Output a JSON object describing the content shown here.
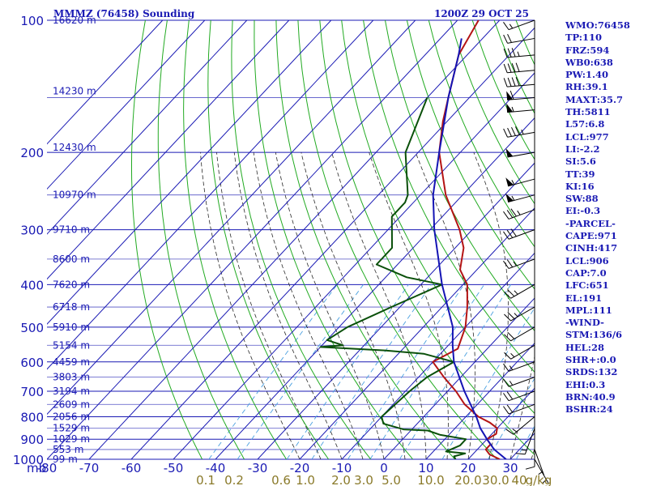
{
  "header": {
    "title_left": "MMMZ (76458) Sounding",
    "title_right": "1200Z 29 OCT 25"
  },
  "stats": [
    "WMO:76458",
    "TP:110",
    "FRZ:594",
    "WB0:638",
    "PW:1.40",
    "RH:39.1",
    "MAXT:35.7",
    "TH:5811",
    "L57:6.8",
    "LCL:977",
    "LI:-2.2",
    "SI:5.6",
    "TT:39",
    "KI:16",
    "SW:88",
    "EI:-0.3",
    "-PARCEL-",
    "CAPE:971",
    "CINH:417",
    "LCL:906",
    "CAP:7.0",
    "LFC:651",
    "EL:191",
    "MPL:111",
    "-WIND-",
    "STM:136/6",
    "HEL:28",
    "SHR+:0.0",
    "SRDS:132",
    "EHI:0.3",
    "BRN:40.9",
    "BSHR:24"
  ],
  "colors": {
    "grid": "#1a1ab4",
    "isotherm": "#1a1ab4",
    "dry_adiabat": "#22aa22",
    "moist_adiabat": "#2a2a2a",
    "mixing_ratio": "#4aa0e0",
    "temperature": "#b41414",
    "dewpoint": "#0a500a",
    "parcel": "#1414b4",
    "wind": "#000000"
  },
  "chart_data": {
    "type": "line",
    "title": "MMMZ (76458) Sounding",
    "xlabel": "",
    "ylabel": "mb",
    "pressure_unit": "mb",
    "xlim": [
      -80,
      30
    ],
    "ylim": [
      1000,
      100
    ],
    "log_y": true,
    "grid": true,
    "pressure_levels": [
      100,
      200,
      300,
      400,
      500,
      600,
      700,
      800,
      900,
      1000
    ],
    "pressure_tick_labels": [
      "100",
      "200",
      "300",
      "400",
      "500",
      "600",
      "700",
      "800",
      "900",
      "1000"
    ],
    "pressure_axis_label": "mb",
    "temp_ticks": [
      -80,
      -70,
      -60,
      -50,
      -40,
      -30,
      -20,
      -10,
      0,
      10,
      20,
      30
    ],
    "temp_tick_labels": [
      "-80",
      "-70",
      "-60",
      "-50",
      "-40",
      "-30",
      "-20",
      "-10",
      "0",
      "10",
      "20",
      "30"
    ],
    "height_labels": [
      {
        "p": 100,
        "text": "16620 m"
      },
      {
        "p": 145,
        "text": "14230 m"
      },
      {
        "p": 195,
        "text": "12430 m"
      },
      {
        "p": 250,
        "text": "10970 m"
      },
      {
        "p": 300,
        "text": "9710 m"
      },
      {
        "p": 350,
        "text": "8600 m"
      },
      {
        "p": 400,
        "text": "7620 m"
      },
      {
        "p": 450,
        "text": "6718 m"
      },
      {
        "p": 500,
        "text": "5910 m"
      },
      {
        "p": 550,
        "text": "5154 m"
      },
      {
        "p": 600,
        "text": "4459 m"
      },
      {
        "p": 650,
        "text": "3803 m"
      },
      {
        "p": 700,
        "text": "3194 m"
      },
      {
        "p": 750,
        "text": "2609 m"
      },
      {
        "p": 800,
        "text": "2056 m"
      },
      {
        "p": 850,
        "text": "1529 m"
      },
      {
        "p": 900,
        "text": "1029 m"
      },
      {
        "p": 950,
        "text": "553 m"
      },
      {
        "p": 1000,
        "text": "99 m"
      }
    ],
    "mixing_ratio_labels": [
      "0.1",
      "0.2",
      "0.6",
      "1.0",
      "2.0",
      "3.0",
      "5.0",
      "10.0",
      "20.0",
      "30.0",
      "40",
      "g/kg"
    ],
    "series": [
      {
        "key": "temperature",
        "points": [
          [
            1000,
            27.5
          ],
          [
            975,
            24
          ],
          [
            950,
            22
          ],
          [
            925,
            22
          ],
          [
            900,
            20
          ],
          [
            875,
            21
          ],
          [
            850,
            20
          ],
          [
            825,
            17
          ],
          [
            800,
            13
          ],
          [
            750,
            7
          ],
          [
            700,
            2
          ],
          [
            650,
            -4
          ],
          [
            600,
            -10
          ],
          [
            560,
            -7
          ],
          [
            500,
            -10
          ],
          [
            450,
            -14
          ],
          [
            400,
            -19
          ],
          [
            370,
            -24
          ],
          [
            330,
            -28
          ],
          [
            300,
            -33
          ],
          [
            250,
            -44
          ],
          [
            200,
            -55
          ],
          [
            170,
            -61
          ],
          [
            150,
            -65
          ],
          [
            120,
            -72
          ],
          [
            100,
            -75
          ]
        ]
      },
      {
        "key": "dewpoint",
        "points": [
          [
            1000,
            17
          ],
          [
            985,
            16
          ],
          [
            970,
            18
          ],
          [
            960,
            13
          ],
          [
            930,
            15
          ],
          [
            900,
            15
          ],
          [
            880,
            8
          ],
          [
            860,
            4
          ],
          [
            855,
            -2
          ],
          [
            830,
            -8
          ],
          [
            800,
            -10
          ],
          [
            700,
            -9
          ],
          [
            650,
            -8
          ],
          [
            600,
            -5
          ],
          [
            575,
            -14
          ],
          [
            565,
            -24
          ],
          [
            555,
            -40
          ],
          [
            550,
            -35
          ],
          [
            535,
            -40
          ],
          [
            500,
            -38
          ],
          [
            450,
            -32
          ],
          [
            400,
            -25
          ],
          [
            385,
            -35
          ],
          [
            360,
            -45
          ],
          [
            330,
            -45
          ],
          [
            280,
            -52
          ],
          [
            260,
            -52
          ],
          [
            250,
            -53
          ],
          [
            200,
            -63
          ],
          [
            150,
            -70
          ]
        ]
      },
      {
        "key": "parcel",
        "points": [
          [
            1000,
            29
          ],
          [
            950,
            24
          ],
          [
            900,
            20
          ],
          [
            850,
            16
          ],
          [
            800,
            12.5
          ],
          [
            700,
            4
          ],
          [
            600,
            -5
          ],
          [
            550,
            -9
          ],
          [
            500,
            -13
          ],
          [
            400,
            -25
          ],
          [
            300,
            -39
          ],
          [
            250,
            -47
          ],
          [
            200,
            -55
          ],
          [
            150,
            -65
          ],
          [
            120,
            -72
          ],
          [
            110,
            -75
          ]
        ]
      }
    ],
    "wind_barbs": [
      {
        "p": 1000,
        "dir": 150,
        "spd": 5
      },
      {
        "p": 950,
        "dir": 160,
        "spd": 5
      },
      {
        "p": 900,
        "dir": 180,
        "spd": 10
      },
      {
        "p": 850,
        "dir": 200,
        "spd": 15
      },
      {
        "p": 800,
        "dir": 230,
        "spd": 15
      },
      {
        "p": 750,
        "dir": 250,
        "spd": 20
      },
      {
        "p": 700,
        "dir": 250,
        "spd": 20
      },
      {
        "p": 650,
        "dir": 250,
        "spd": 15
      },
      {
        "p": 600,
        "dir": 250,
        "spd": 15
      },
      {
        "p": 550,
        "dir": 240,
        "spd": 15
      },
      {
        "p": 500,
        "dir": 240,
        "spd": 20
      },
      {
        "p": 450,
        "dir": 240,
        "spd": 25
      },
      {
        "p": 400,
        "dir": 240,
        "spd": 25
      },
      {
        "p": 350,
        "dir": 250,
        "spd": 25
      },
      {
        "p": 300,
        "dir": 250,
        "spd": 30
      },
      {
        "p": 270,
        "dir": 250,
        "spd": 35
      },
      {
        "p": 250,
        "dir": 255,
        "spd": 55
      },
      {
        "p": 230,
        "dir": 255,
        "spd": 55
      },
      {
        "p": 200,
        "dir": 260,
        "spd": 50
      },
      {
        "p": 180,
        "dir": 260,
        "spd": 45
      },
      {
        "p": 160,
        "dir": 265,
        "spd": 55
      },
      {
        "p": 150,
        "dir": 265,
        "spd": 60
      },
      {
        "p": 140,
        "dir": 265,
        "spd": 40
      },
      {
        "p": 130,
        "dir": 265,
        "spd": 40
      },
      {
        "p": 120,
        "dir": 265,
        "spd": 35
      },
      {
        "p": 110,
        "dir": 260,
        "spd": 20
      },
      {
        "p": 100,
        "dir": 250,
        "spd": 15
      }
    ]
  }
}
